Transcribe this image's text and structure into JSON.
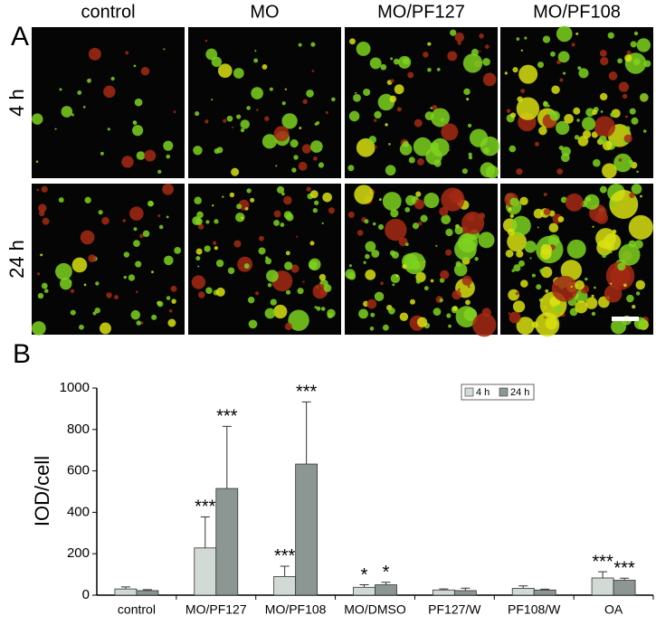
{
  "panel_a": {
    "label": "A",
    "columns": [
      "control",
      "MO",
      "MO/PF127",
      "MO/PF108"
    ],
    "rows": [
      "4 h",
      "24 h"
    ]
  },
  "chart_data": {
    "type": "bar",
    "panel_label": "B",
    "ylabel": "IOD/cell",
    "categories": [
      "control",
      "MO/PF127",
      "MO/PF108",
      "MO/DMSO",
      "PF127/W",
      "PF108/W",
      "OA"
    ],
    "series": [
      {
        "name": "4 h",
        "color": "#d2dad6",
        "values": [
          30,
          228,
          90,
          38,
          25,
          33,
          83
        ],
        "errors": [
          10,
          150,
          50,
          12,
          5,
          12,
          30
        ],
        "annotations": [
          null,
          "***",
          "***",
          "*",
          null,
          null,
          "***"
        ]
      },
      {
        "name": "24 h",
        "color": "#8c9692",
        "values": [
          22,
          515,
          633,
          50,
          22,
          25,
          72
        ],
        "errors": [
          5,
          300,
          300,
          12,
          12,
          4,
          10
        ],
        "annotations": [
          null,
          "***",
          "***",
          "*",
          null,
          null,
          "***"
        ]
      }
    ],
    "ylim": [
      0,
      1000
    ],
    "yticks": [
      0,
      200,
      400,
      600,
      800,
      1000
    ],
    "grid": false,
    "legend": "top-right"
  }
}
